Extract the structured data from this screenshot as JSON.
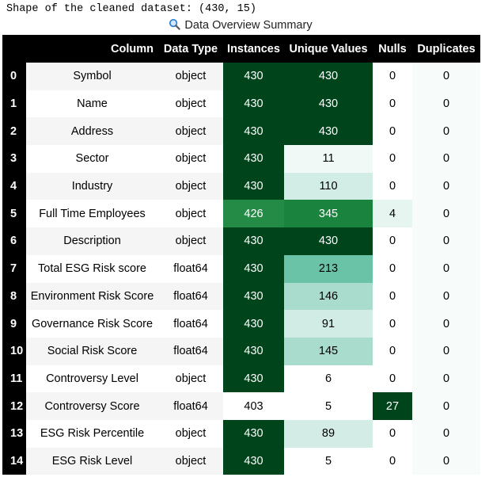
{
  "output": {
    "shape_text": "Shape of the cleaned dataset: (430, 15)"
  },
  "caption": {
    "icon": "magnifier-icon",
    "text": "Data Overview Summary"
  },
  "table": {
    "index_header": "",
    "headers": [
      "Column",
      "Data Type",
      "Instances",
      "Unique Values",
      "Nulls",
      "Duplicates"
    ],
    "rows": [
      {
        "index": "0",
        "column": "Symbol",
        "dtype": "object",
        "instances": "430",
        "unique": "430",
        "nulls": "0",
        "duplicates": "0"
      },
      {
        "index": "1",
        "column": "Name",
        "dtype": "object",
        "instances": "430",
        "unique": "430",
        "nulls": "0",
        "duplicates": "0"
      },
      {
        "index": "2",
        "column": "Address",
        "dtype": "object",
        "instances": "430",
        "unique": "430",
        "nulls": "0",
        "duplicates": "0"
      },
      {
        "index": "3",
        "column": "Sector",
        "dtype": "object",
        "instances": "430",
        "unique": "11",
        "nulls": "0",
        "duplicates": "0"
      },
      {
        "index": "4",
        "column": "Industry",
        "dtype": "object",
        "instances": "430",
        "unique": "110",
        "nulls": "0",
        "duplicates": "0"
      },
      {
        "index": "5",
        "column": "Full Time Employees",
        "dtype": "object",
        "instances": "426",
        "unique": "345",
        "nulls": "4",
        "duplicates": "0"
      },
      {
        "index": "6",
        "column": "Description",
        "dtype": "object",
        "instances": "430",
        "unique": "430",
        "nulls": "0",
        "duplicates": "0"
      },
      {
        "index": "7",
        "column": "Total ESG Risk score",
        "dtype": "float64",
        "instances": "430",
        "unique": "213",
        "nulls": "0",
        "duplicates": "0"
      },
      {
        "index": "8",
        "column": "Environment Risk Score",
        "dtype": "float64",
        "instances": "430",
        "unique": "146",
        "nulls": "0",
        "duplicates": "0"
      },
      {
        "index": "9",
        "column": "Governance Risk Score",
        "dtype": "float64",
        "instances": "430",
        "unique": "91",
        "nulls": "0",
        "duplicates": "0"
      },
      {
        "index": "10",
        "column": "Social Risk Score",
        "dtype": "float64",
        "instances": "430",
        "unique": "145",
        "nulls": "0",
        "duplicates": "0"
      },
      {
        "index": "11",
        "column": "Controversy Level",
        "dtype": "object",
        "instances": "430",
        "unique": "6",
        "nulls": "0",
        "duplicates": "0"
      },
      {
        "index": "12",
        "column": "Controversy Score",
        "dtype": "float64",
        "instances": "403",
        "unique": "5",
        "nulls": "27",
        "duplicates": "0"
      },
      {
        "index": "13",
        "column": "ESG Risk Percentile",
        "dtype": "object",
        "instances": "430",
        "unique": "89",
        "nulls": "0",
        "duplicates": "0"
      },
      {
        "index": "14",
        "column": "ESG Risk Level",
        "dtype": "object",
        "instances": "430",
        "unique": "5",
        "nulls": "0",
        "duplicates": "0"
      }
    ],
    "cell_colors": {
      "instances": [
        "#00441b",
        "#00441b",
        "#00441b",
        "#00441b",
        "#00441b",
        "#238b45",
        "#00441b",
        "#00441b",
        "#00441b",
        "#00441b",
        "#00441b",
        "#00441b",
        "#ffffff",
        "#00441b",
        "#00441b"
      ],
      "unique": [
        "#00441b",
        "#00441b",
        "#00441b",
        "#f0f9f5",
        "#d1ede5",
        "#1a843f",
        "#00441b",
        "#6bc3a7",
        "#a9dccc",
        "#d0ece4",
        "#a9dccc",
        "#ffffff",
        "#ffffff",
        "#d3ede6",
        "#ffffff"
      ],
      "nulls": [
        "#ffffff",
        "#ffffff",
        "#ffffff",
        "#ffffff",
        "#ffffff",
        "#e6f5f0",
        "#ffffff",
        "#ffffff",
        "#ffffff",
        "#ffffff",
        "#ffffff",
        "#ffffff",
        "#00441b",
        "#ffffff",
        "#ffffff"
      ],
      "duplicates": [
        "#f7fcfa",
        "#f7fcfa",
        "#f7fcfa",
        "#f7fcfa",
        "#f7fcfa",
        "#f7fcfa",
        "#f7fcfa",
        "#f7fcfa",
        "#f7fcfa",
        "#f7fcfa",
        "#f7fcfa",
        "#f7fcfa",
        "#f7fcfa",
        "#f7fcfa",
        "#f7fcfa"
      ]
    }
  }
}
